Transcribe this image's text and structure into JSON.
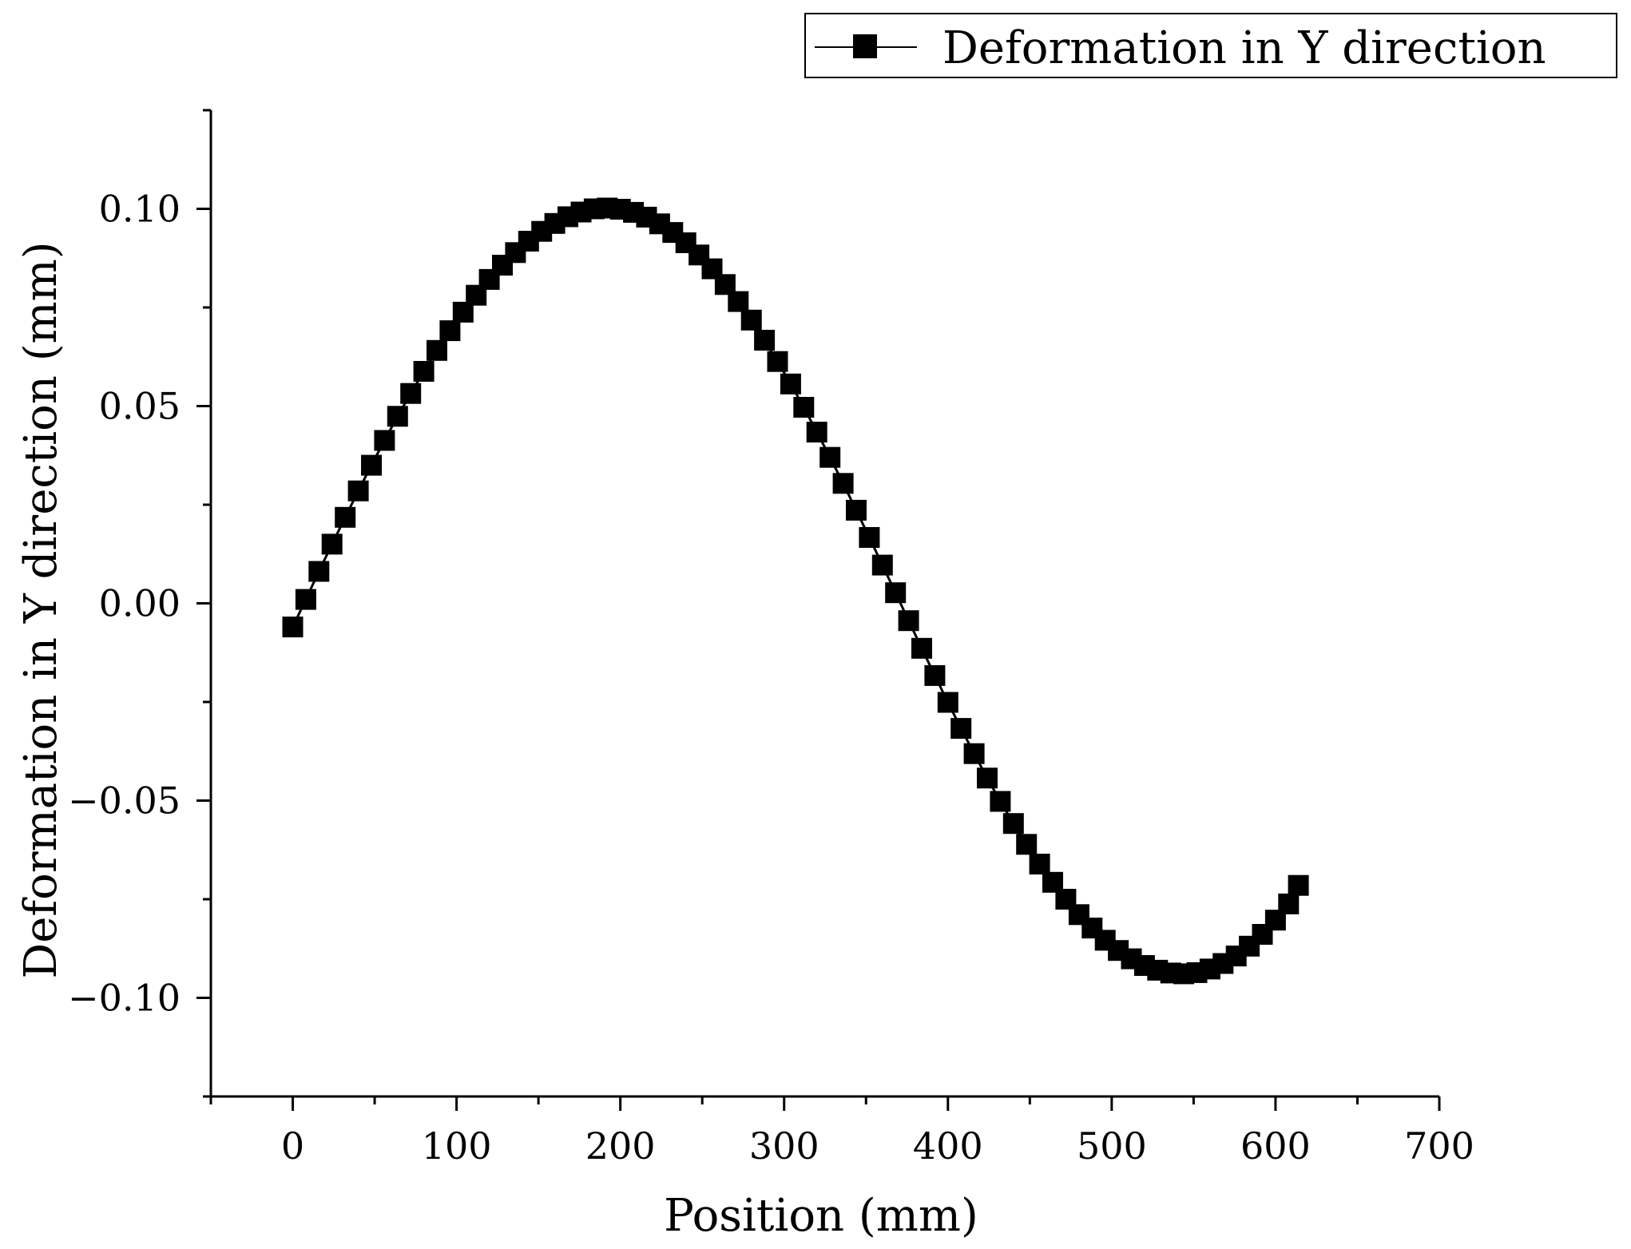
{
  "chart_data": {
    "type": "line",
    "title": "",
    "xlabel": "Position (mm)",
    "ylabel": "Deformation in Y direction (mm)",
    "xlim": [
      -50,
      700
    ],
    "ylim": [
      -0.125,
      0.125
    ],
    "x_ticks": [
      0,
      100,
      200,
      300,
      400,
      500,
      600,
      700
    ],
    "x_tick_labels": [
      "0",
      "100",
      "200",
      "300",
      "400",
      "500",
      "600",
      "700"
    ],
    "y_ticks": [
      0.1,
      0.05,
      0.0,
      -0.05,
      -0.1
    ],
    "y_tick_labels": [
      "0.10",
      "0.05",
      "0.00",
      "−0.05",
      "−0.10"
    ],
    "grid": false,
    "legend": {
      "placement": "top-right",
      "marker": "square",
      "color": "#000000"
    },
    "series": [
      {
        "name": "Deformation in Y direction",
        "color": "#000000",
        "marker": "square",
        "x": [
          0,
          8,
          16,
          24,
          32,
          40,
          48,
          56,
          64,
          72,
          80,
          88,
          96,
          104,
          112,
          120,
          128,
          136,
          144,
          152,
          160,
          168,
          176,
          184,
          192,
          200,
          208,
          216,
          224,
          232,
          240,
          248,
          256,
          264,
          272,
          280,
          288,
          296,
          304,
          312,
          320,
          328,
          336,
          344,
          352,
          360,
          368,
          376,
          384,
          392,
          400,
          408,
          416,
          424,
          432,
          440,
          448,
          456,
          464,
          472,
          480,
          488,
          496,
          504,
          512,
          520,
          528,
          536,
          544,
          552,
          560,
          568,
          576,
          584,
          592,
          600,
          608,
          614
        ],
        "y": [
          -0.006,
          0.001,
          0.0081,
          0.015,
          0.0218,
          0.0285,
          0.035,
          0.0413,
          0.0474,
          0.0532,
          0.0588,
          0.0641,
          0.0691,
          0.0738,
          0.0781,
          0.0821,
          0.0857,
          0.0889,
          0.0918,
          0.0943,
          0.0963,
          0.098,
          0.0992,
          0.1,
          0.1002,
          0.0999,
          0.0991,
          0.0979,
          0.0962,
          0.094,
          0.0914,
          0.0883,
          0.0848,
          0.0808,
          0.0765,
          0.0718,
          0.0667,
          0.0613,
          0.0556,
          0.0497,
          0.0434,
          0.037,
          0.0304,
          0.0236,
          0.0167,
          0.0097,
          0.0027,
          -0.0044,
          -0.0114,
          -0.0183,
          -0.0251,
          -0.0317,
          -0.0381,
          -0.0443,
          -0.0502,
          -0.0558,
          -0.0611,
          -0.0661,
          -0.0707,
          -0.075,
          -0.0789,
          -0.0823,
          -0.0854,
          -0.088,
          -0.0901,
          -0.0918,
          -0.093,
          -0.0937,
          -0.0939,
          -0.0936,
          -0.0927,
          -0.0913,
          -0.0894,
          -0.0869,
          -0.0839,
          -0.0803,
          -0.0762,
          -0.0715
        ]
      }
    ]
  }
}
